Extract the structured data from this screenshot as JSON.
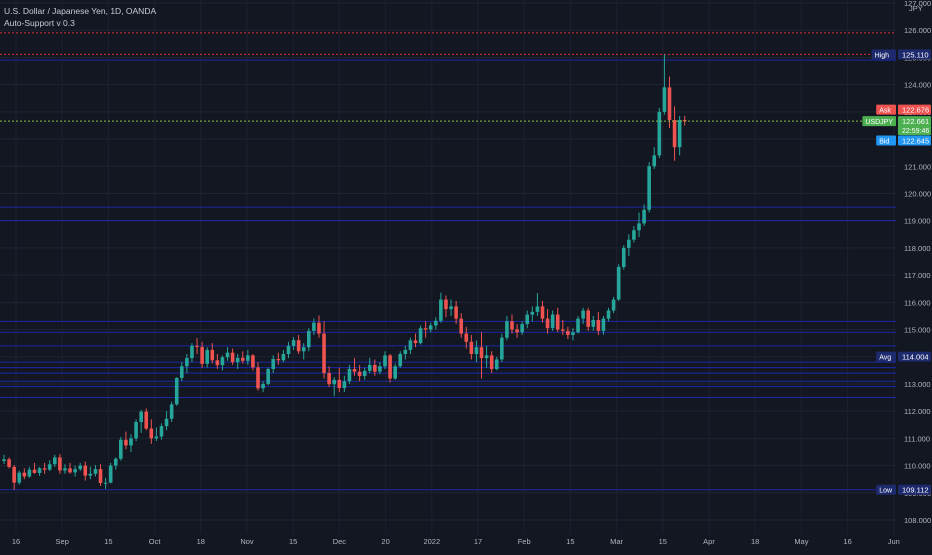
{
  "header": {
    "symbol_title": "U.S. Dollar / Japanese Yen, 1D, OANDA",
    "indicator_title": "Auto-Support v 0.3"
  },
  "currency_label": "JPY",
  "colors": {
    "background": "#131722",
    "up": "#26a69a",
    "down": "#ef5350",
    "support_line": "#1e2bbd",
    "high_line": "#d32f2f",
    "last_price_line": "#8bc34a",
    "axis_text": "#b2b5be"
  },
  "chart_data": {
    "type": "candlestick",
    "title": "U.S. Dollar / Japanese Yen, 1D, OANDA",
    "ylim": [
      107.8,
      127.1
    ],
    "y_ticks": [
      108,
      109,
      110,
      111,
      112,
      113,
      114,
      115,
      116,
      117,
      118,
      119,
      120,
      121,
      122,
      123,
      124,
      125,
      126,
      127
    ],
    "x_tick_labels": [
      "16",
      "Sep",
      "15",
      "Oct",
      "18",
      "Nov",
      "15",
      "Dec",
      "20",
      "2022",
      "17",
      "Feb",
      "15",
      "Mar",
      "15",
      "Apr",
      "18",
      "May",
      "16",
      "Jun"
    ],
    "candles": [
      [
        110.17,
        110.4,
        110.06,
        110.23
      ],
      [
        110.23,
        110.3,
        109.9,
        109.95
      ],
      [
        109.95,
        110.02,
        109.11,
        109.37
      ],
      [
        109.37,
        109.82,
        109.3,
        109.74
      ],
      [
        109.74,
        109.9,
        109.5,
        109.6
      ],
      [
        109.6,
        109.95,
        109.55,
        109.85
      ],
      [
        109.85,
        110.1,
        109.7,
        109.73
      ],
      [
        109.73,
        109.95,
        109.62,
        109.9
      ],
      [
        109.9,
        110.1,
        109.7,
        109.85
      ],
      [
        109.85,
        110.2,
        109.8,
        110.05
      ],
      [
        110.05,
        110.4,
        109.95,
        110.3
      ],
      [
        110.3,
        110.42,
        109.7,
        109.82
      ],
      [
        109.82,
        110.05,
        109.7,
        109.9
      ],
      [
        109.9,
        110.1,
        109.7,
        109.75
      ],
      [
        109.75,
        110.0,
        109.6,
        109.87
      ],
      [
        109.87,
        110.1,
        109.8,
        110.0
      ],
      [
        110.0,
        110.15,
        109.45,
        109.63
      ],
      [
        109.63,
        109.96,
        109.5,
        109.7
      ],
      [
        109.7,
        110.02,
        109.6,
        109.87
      ],
      [
        109.87,
        110.05,
        109.25,
        109.36
      ],
      [
        109.36,
        109.55,
        109.14,
        109.37
      ],
      [
        109.37,
        110.1,
        109.35,
        110.0
      ],
      [
        110.0,
        110.3,
        109.85,
        110.25
      ],
      [
        110.25,
        111.05,
        110.18,
        110.95
      ],
      [
        110.95,
        111.25,
        110.6,
        110.74
      ],
      [
        110.74,
        111.15,
        110.5,
        111.0
      ],
      [
        111.0,
        111.7,
        110.9,
        111.6
      ],
      [
        111.6,
        112.05,
        111.2,
        111.98
      ],
      [
        111.98,
        112.1,
        111.3,
        111.36
      ],
      [
        111.36,
        111.7,
        110.8,
        111.0
      ],
      [
        111.0,
        111.4,
        110.9,
        111.07
      ],
      [
        111.07,
        111.55,
        110.95,
        111.45
      ],
      [
        111.45,
        112.0,
        111.3,
        111.72
      ],
      [
        111.72,
        112.35,
        111.6,
        112.25
      ],
      [
        112.25,
        113.25,
        112.2,
        113.22
      ],
      [
        113.22,
        113.8,
        113.1,
        113.65
      ],
      [
        113.65,
        114.1,
        113.4,
        113.95
      ],
      [
        113.95,
        114.5,
        113.8,
        114.4
      ],
      [
        114.4,
        114.69,
        114.1,
        114.36
      ],
      [
        114.36,
        114.55,
        113.6,
        113.74
      ],
      [
        113.74,
        114.35,
        113.6,
        114.25
      ],
      [
        114.25,
        114.5,
        113.75,
        113.87
      ],
      [
        113.87,
        114.1,
        113.55,
        113.69
      ],
      [
        113.69,
        114.05,
        113.5,
        113.98
      ],
      [
        113.98,
        114.35,
        113.85,
        114.15
      ],
      [
        114.15,
        114.3,
        113.7,
        113.8
      ],
      [
        113.8,
        114.1,
        113.55,
        113.96
      ],
      [
        113.96,
        114.2,
        113.75,
        113.85
      ],
      [
        113.85,
        114.25,
        113.7,
        114.05
      ],
      [
        114.05,
        114.1,
        113.5,
        113.61
      ],
      [
        113.61,
        113.8,
        112.75,
        112.84
      ],
      [
        112.84,
        113.1,
        112.7,
        113.0
      ],
      [
        113.0,
        113.6,
        112.95,
        113.55
      ],
      [
        113.55,
        114.05,
        113.4,
        113.92
      ],
      [
        113.92,
        114.15,
        113.7,
        113.87
      ],
      [
        113.87,
        114.25,
        113.8,
        114.1
      ],
      [
        114.1,
        114.55,
        113.95,
        114.4
      ],
      [
        114.4,
        114.72,
        114.25,
        114.61
      ],
      [
        114.61,
        114.8,
        114.1,
        114.2
      ],
      [
        114.2,
        114.5,
        113.9,
        114.35
      ],
      [
        114.35,
        115.05,
        114.2,
        114.95
      ],
      [
        114.95,
        115.4,
        114.8,
        115.25
      ],
      [
        115.25,
        115.52,
        114.7,
        114.85
      ],
      [
        114.85,
        115.3,
        113.2,
        113.4
      ],
      [
        113.4,
        113.65,
        112.89,
        112.99
      ],
      [
        112.99,
        113.25,
        112.55,
        113.15
      ],
      [
        113.15,
        113.6,
        112.7,
        112.85
      ],
      [
        112.85,
        113.3,
        112.7,
        113.1
      ],
      [
        113.1,
        113.7,
        113.0,
        113.55
      ],
      [
        113.55,
        113.95,
        113.3,
        113.45
      ],
      [
        113.45,
        113.7,
        113.1,
        113.29
      ],
      [
        113.29,
        113.6,
        113.15,
        113.48
      ],
      [
        113.48,
        113.95,
        113.4,
        113.7
      ],
      [
        113.7,
        113.9,
        113.3,
        113.45
      ],
      [
        113.45,
        113.8,
        113.35,
        113.65
      ],
      [
        113.65,
        114.2,
        113.55,
        114.05
      ],
      [
        114.05,
        114.1,
        113.05,
        113.2
      ],
      [
        113.2,
        113.75,
        113.15,
        113.65
      ],
      [
        113.65,
        114.2,
        113.6,
        114.1
      ],
      [
        114.1,
        114.4,
        113.9,
        114.25
      ],
      [
        114.25,
        114.7,
        114.1,
        114.6
      ],
      [
        114.6,
        114.85,
        114.35,
        114.5
      ],
      [
        114.5,
        115.15,
        114.45,
        115.05
      ],
      [
        115.05,
        115.3,
        114.7,
        115.0
      ],
      [
        115.0,
        115.25,
        114.9,
        115.15
      ],
      [
        115.15,
        115.45,
        115.0,
        115.32
      ],
      [
        115.32,
        116.35,
        115.25,
        116.1
      ],
      [
        116.1,
        116.25,
        115.45,
        115.75
      ],
      [
        115.75,
        116.1,
        115.5,
        115.85
      ],
      [
        115.85,
        116.05,
        115.2,
        115.4
      ],
      [
        115.4,
        115.6,
        114.7,
        114.85
      ],
      [
        114.85,
        115.1,
        114.3,
        114.55
      ],
      [
        114.55,
        114.8,
        113.9,
        114.1
      ],
      [
        114.1,
        114.6,
        113.8,
        114.35
      ],
      [
        114.35,
        114.9,
        113.2,
        113.95
      ],
      [
        113.95,
        114.4,
        113.6,
        114.05
      ],
      [
        114.05,
        114.2,
        113.4,
        113.55
      ],
      [
        113.55,
        114.0,
        113.5,
        113.9
      ],
      [
        113.9,
        114.85,
        113.8,
        114.7
      ],
      [
        114.7,
        115.5,
        114.6,
        115.3
      ],
      [
        115.3,
        115.55,
        114.85,
        115.0
      ],
      [
        115.0,
        115.2,
        114.7,
        114.9
      ],
      [
        114.9,
        115.3,
        114.8,
        115.2
      ],
      [
        115.2,
        115.7,
        115.05,
        115.55
      ],
      [
        115.55,
        115.85,
        115.3,
        115.65
      ],
      [
        115.65,
        116.34,
        115.5,
        115.85
      ],
      [
        115.85,
        116.05,
        115.25,
        115.4
      ],
      [
        115.4,
        115.75,
        114.85,
        115.05
      ],
      [
        115.05,
        115.7,
        114.95,
        115.55
      ],
      [
        115.55,
        115.8,
        114.9,
        115.0
      ],
      [
        115.0,
        115.35,
        114.8,
        114.95
      ],
      [
        114.95,
        115.1,
        114.65,
        114.8
      ],
      [
        114.8,
        115.05,
        114.6,
        114.9
      ],
      [
        114.9,
        115.5,
        114.85,
        115.4
      ],
      [
        115.4,
        115.8,
        115.2,
        115.7
      ],
      [
        115.7,
        115.8,
        114.95,
        115.1
      ],
      [
        115.1,
        115.5,
        114.95,
        115.35
      ],
      [
        115.35,
        115.65,
        114.8,
        114.95
      ],
      [
        114.95,
        115.5,
        114.8,
        115.4
      ],
      [
        115.4,
        115.8,
        115.3,
        115.7
      ],
      [
        115.7,
        116.2,
        115.6,
        116.1
      ],
      [
        116.1,
        117.4,
        116.05,
        117.3
      ],
      [
        117.3,
        118.1,
        117.2,
        118.0
      ],
      [
        118.0,
        118.5,
        117.7,
        118.3
      ],
      [
        118.3,
        118.8,
        118.2,
        118.65
      ],
      [
        118.65,
        119.3,
        118.4,
        118.9
      ],
      [
        118.9,
        119.6,
        118.8,
        119.4
      ],
      [
        119.4,
        121.15,
        119.3,
        121.0
      ],
      [
        121.0,
        121.7,
        120.9,
        121.4
      ],
      [
        121.4,
        123.15,
        121.3,
        123.0
      ],
      [
        123.0,
        125.11,
        122.9,
        123.9
      ],
      [
        123.9,
        124.3,
        122.4,
        122.7
      ],
      [
        122.7,
        123.2,
        121.2,
        121.7
      ],
      [
        121.7,
        122.85,
        121.4,
        122.7
      ],
      [
        122.7,
        122.85,
        122.5,
        122.66
      ]
    ],
    "support_levels": [
      124.9,
      119.5,
      119.0,
      115.3,
      114.9,
      114.4,
      113.8,
      113.6,
      113.4,
      113.1,
      112.9,
      112.5,
      109.112
    ],
    "high_level": 125.11,
    "resistance_level": 125.9,
    "last_price": 122.661,
    "price_badges": [
      {
        "label": "High",
        "value": "125.110",
        "price": 125.11,
        "color": "#1e2a6e"
      },
      {
        "label": "Ask",
        "value": "122.676",
        "price": 122.676,
        "color": "#ef5350"
      },
      {
        "label": "USDJPY",
        "value": "122.661",
        "sub": "22:59:46",
        "price": 122.661,
        "color": "#4caf50"
      },
      {
        "label": "Bid",
        "value": "122.645",
        "price": 122.645,
        "color": "#2196f3"
      },
      {
        "label": "Avg",
        "value": "114.004",
        "price": 114.004,
        "color": "#1e2a6e"
      },
      {
        "label": "Low",
        "value": "109.112",
        "price": 109.112,
        "color": "#1e2a6e"
      }
    ]
  }
}
